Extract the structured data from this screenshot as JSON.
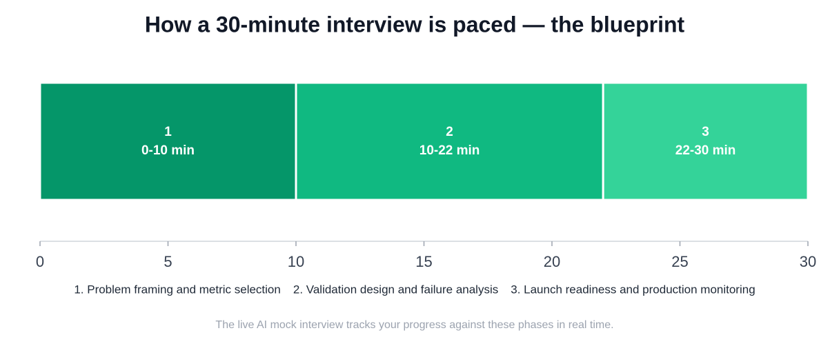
{
  "chart_data": {
    "type": "stacked-bar",
    "orientation": "horizontal",
    "title": "How a 30-minute interview is paced — the blueprint",
    "series": [
      {
        "name": "1. Problem framing and metric selection",
        "label": "1",
        "range_label": "0-10 min",
        "color": "#059669",
        "values": [
          10
        ]
      },
      {
        "name": "2. Validation design and failure analysis",
        "label": "2",
        "range_label": "10-22 min",
        "color": "#10b981",
        "values": [
          12
        ]
      },
      {
        "name": "3. Launch readiness and production monitoring",
        "label": "3",
        "range_label": "22-30 min",
        "color": "#34d399",
        "values": [
          8
        ]
      }
    ],
    "xlim": [
      0,
      30
    ],
    "xticks": [
      0,
      5,
      10,
      15,
      20,
      25,
      30
    ],
    "footnote": "The live AI mock interview tracks your progress against these phases in real time."
  }
}
